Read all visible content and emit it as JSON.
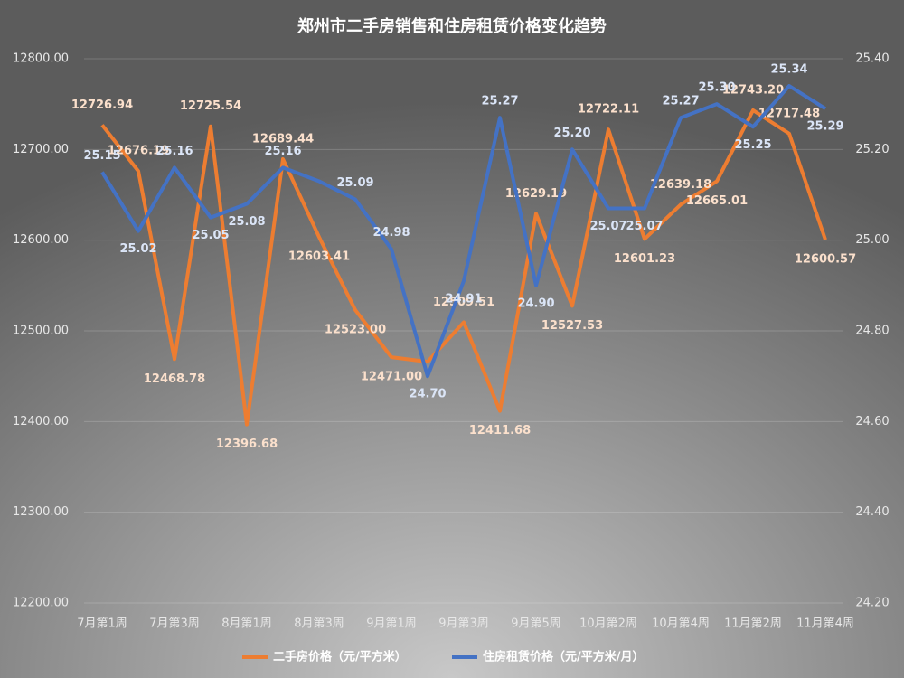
{
  "chart_data": {
    "type": "line",
    "title": "郑州市二手房销售和住房租赁价格变化趋势",
    "categories": [
      "7月第1周",
      null,
      "7月第3周",
      null,
      "8月第1周",
      null,
      "8月第3周",
      null,
      "9月第1周",
      null,
      "9月第3周",
      null,
      "9月第5周",
      null,
      "10月第2周",
      null,
      "10月第4周",
      null,
      "11月第2周",
      null,
      "11月第4周"
    ],
    "series": [
      {
        "name": "二手房价格（元/平方米）",
        "color": "#ed7d31",
        "values": [
          12726.94,
          12676.19,
          12468.78,
          12725.54,
          12396.68,
          12689.44,
          12603.41,
          12523.0,
          12471.0,
          12466,
          12509.51,
          12411.68,
          12629.19,
          12527.53,
          12722.11,
          12601.23,
          12639.18,
          12665.01,
          12743.2,
          12717.48,
          12600.57
        ],
        "value_labels": [
          "12726.94",
          "12676.19",
          "12468.78",
          "12725.54",
          "12396.68",
          "12689.44",
          "12603.41",
          "12523.00",
          "12471.00",
          null,
          "12509.51",
          "12411.68",
          "12629.19",
          "12527.53",
          "12722.11",
          "12601.23",
          "12639.18",
          "12665.01",
          "12743.20",
          "12717.48",
          "12600.57"
        ]
      },
      {
        "name": "住房租赁价格（元/平方米/月）",
        "color": "#4472c4",
        "axis": "y2",
        "values": [
          25.15,
          25.02,
          25.16,
          25.05,
          25.08,
          25.16,
          25.13,
          25.09,
          24.98,
          24.7,
          24.91,
          25.27,
          24.9,
          25.2,
          25.07,
          25.07,
          25.27,
          25.3,
          25.25,
          25.34,
          25.29
        ],
        "value_labels": [
          "25.15",
          "25.02",
          "25.16",
          "25.05",
          "25.08",
          "25.16",
          null,
          "25.09",
          "24.98",
          "24.70",
          "24.91",
          "25.27",
          "24.90",
          "25.20",
          "25.07",
          "25.07",
          "25.27",
          "25.30",
          "25.25",
          "25.34",
          "25.29"
        ]
      }
    ],
    "ylim": [
      12200,
      12800
    ],
    "yticks": [
      {
        "value": 12200,
        "label": "12200.00"
      },
      {
        "value": 12300,
        "label": "12300.00"
      },
      {
        "value": 12400,
        "label": "12400.00"
      },
      {
        "value": 12500,
        "label": "12500.00"
      },
      {
        "value": 12600,
        "label": "12600.00"
      },
      {
        "value": 12700,
        "label": "12700.00"
      },
      {
        "value": 12800,
        "label": "12800.00"
      }
    ],
    "y2lim": [
      24.2,
      25.4
    ],
    "y2ticks": [
      {
        "value": 24.2,
        "label": "24.20"
      },
      {
        "value": 24.4,
        "label": "24.40"
      },
      {
        "value": 24.6,
        "label": "24.60"
      },
      {
        "value": 24.8,
        "label": "24.80"
      },
      {
        "value": 25.0,
        "label": "25.00"
      },
      {
        "value": 25.2,
        "label": "25.20"
      },
      {
        "value": 25.4,
        "label": "25.40"
      }
    ],
    "grid": true
  }
}
